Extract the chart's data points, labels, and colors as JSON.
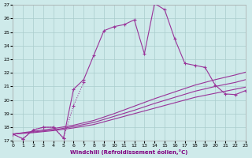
{
  "xlabel": "Windchill (Refroidissement éolien,°C)",
  "background_color": "#ceeaea",
  "grid_color": "#aacccc",
  "line_color": "#993399",
  "xlim": [
    0,
    23
  ],
  "ylim": [
    17,
    27
  ],
  "yticks": [
    17,
    18,
    19,
    20,
    21,
    22,
    23,
    24,
    25,
    26,
    27
  ],
  "xticks": [
    0,
    1,
    2,
    3,
    4,
    5,
    6,
    7,
    8,
    9,
    10,
    11,
    12,
    13,
    14,
    15,
    16,
    17,
    18,
    19,
    20,
    21,
    22,
    23
  ],
  "curve1_x": [
    0,
    1,
    2,
    3,
    4,
    5,
    6,
    7
  ],
  "curve1_y": [
    17.5,
    17.15,
    17.8,
    18.0,
    18.0,
    17.2,
    19.6,
    21.3
  ],
  "curve2_x": [
    0,
    1,
    2,
    3,
    4,
    5,
    6,
    7,
    8,
    9,
    10,
    11,
    12,
    13,
    14,
    15,
    16,
    17,
    18,
    19,
    20,
    21,
    22,
    23
  ],
  "curve2_y": [
    17.5,
    17.15,
    17.8,
    18.0,
    18.0,
    17.2,
    20.8,
    21.5,
    23.3,
    25.1,
    25.4,
    25.55,
    25.9,
    23.4,
    27.1,
    26.65,
    24.5,
    22.7,
    22.55,
    22.4,
    21.1,
    20.45,
    20.4,
    20.7
  ],
  "fan1_x": [
    0,
    2,
    4,
    6,
    8,
    10,
    12,
    14,
    16,
    18,
    20,
    22,
    23
  ],
  "fan1_y": [
    17.5,
    17.7,
    17.9,
    18.15,
    18.5,
    19.0,
    19.55,
    20.1,
    20.6,
    21.1,
    21.5,
    21.85,
    22.05
  ],
  "fan2_x": [
    0,
    2,
    4,
    6,
    8,
    10,
    12,
    14,
    16,
    18,
    20,
    22,
    23
  ],
  "fan2_y": [
    17.5,
    17.65,
    17.8,
    18.05,
    18.35,
    18.8,
    19.25,
    19.75,
    20.2,
    20.65,
    21.0,
    21.3,
    21.5
  ],
  "fan3_x": [
    0,
    2,
    4,
    6,
    8,
    10,
    12,
    14,
    16,
    18,
    20,
    22,
    23
  ],
  "fan3_y": [
    17.5,
    17.6,
    17.75,
    17.95,
    18.2,
    18.6,
    19.0,
    19.4,
    19.8,
    20.2,
    20.5,
    20.8,
    20.95
  ]
}
